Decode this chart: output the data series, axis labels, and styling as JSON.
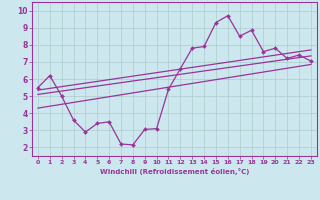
{
  "xlabel": "Windchill (Refroidissement éolien,°C)",
  "bg_color": "#cce8ee",
  "grid_color": "#aacccc",
  "line_color": "#993399",
  "xlim": [
    -0.5,
    23.5
  ],
  "ylim": [
    1.5,
    10.5
  ],
  "xticks": [
    0,
    1,
    2,
    3,
    4,
    5,
    6,
    7,
    8,
    9,
    10,
    11,
    12,
    13,
    14,
    15,
    16,
    17,
    18,
    19,
    20,
    21,
    22,
    23
  ],
  "yticks": [
    2,
    3,
    4,
    5,
    6,
    7,
    8,
    9,
    10
  ],
  "main_series_x": [
    0,
    1,
    2,
    3,
    4,
    5,
    6,
    7,
    8,
    9,
    10,
    11,
    12,
    13,
    14,
    15,
    16,
    17,
    18,
    19,
    20,
    21,
    22,
    23
  ],
  "main_series_y": [
    5.5,
    6.2,
    5.0,
    3.6,
    2.9,
    3.4,
    3.5,
    2.2,
    2.15,
    3.05,
    3.1,
    5.4,
    6.6,
    7.8,
    7.9,
    9.3,
    9.7,
    8.5,
    8.85,
    7.6,
    7.8,
    7.2,
    7.4,
    7.05
  ],
  "trend1_x": [
    0,
    23
  ],
  "trend1_y": [
    5.1,
    7.35
  ],
  "trend2_x": [
    0,
    23
  ],
  "trend2_y": [
    5.35,
    7.7
  ],
  "trend3_x": [
    0,
    23
  ],
  "trend3_y": [
    4.3,
    6.85
  ]
}
